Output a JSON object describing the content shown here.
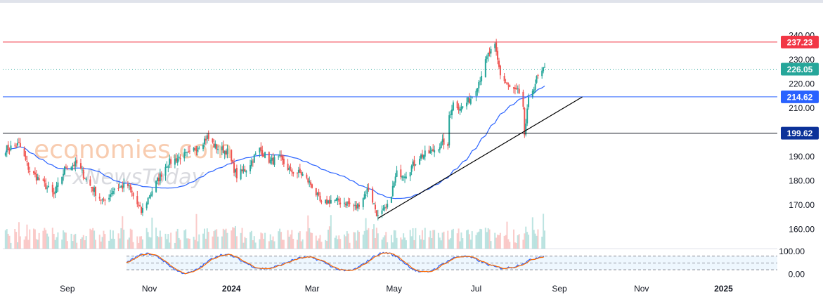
{
  "chart_data": {
    "type": "candlestick",
    "price_axis": {
      "range": [
        152,
        243
      ],
      "ticks": [
        "240.00",
        "230.00",
        "220.00",
        "210.00",
        "190.00",
        "180.00",
        "170.00",
        "160.00"
      ]
    },
    "oscillator_axis": {
      "range": [
        -20,
        110
      ],
      "ticks": [
        "100.00",
        "0.00"
      ],
      "band_upper": 80,
      "band_lower": 20
    },
    "time_axis": {
      "start": "2023-07-15",
      "end": "2025-02-10",
      "labels": [
        {
          "text": "Sep",
          "date": "2023-09-01",
          "bold": false
        },
        {
          "text": "Nov",
          "date": "2023-11-01",
          "bold": false
        },
        {
          "text": "2024",
          "date": "2024-01-01",
          "bold": true
        },
        {
          "text": "Mar",
          "date": "2024-03-01",
          "bold": false
        },
        {
          "text": "May",
          "date": "2024-05-01",
          "bold": false
        },
        {
          "text": "Jul",
          "date": "2024-07-01",
          "bold": false
        },
        {
          "text": "Sep",
          "date": "2024-09-01",
          "bold": false
        },
        {
          "text": "Nov",
          "date": "2024-11-01",
          "bold": false
        },
        {
          "text": "2025",
          "date": "2025-01-01",
          "bold": true
        }
      ]
    },
    "horizontal_levels": [
      {
        "name": "resistance",
        "value": 237.23,
        "label": "237.23",
        "color": "#f23645",
        "style": "solid"
      },
      {
        "name": "last-price",
        "value": 226.05,
        "label": "226.05",
        "color": "#26a69a",
        "style": "dotted"
      },
      {
        "name": "support-1",
        "value": 214.62,
        "label": "214.62",
        "color": "#2962ff",
        "style": "solid"
      },
      {
        "name": "support-2",
        "value": 199.62,
        "label": "199.62",
        "color": "#131722",
        "style": "solid"
      }
    ],
    "trendline": {
      "from": {
        "date": "2024-04-19",
        "price": 164.5
      },
      "to": {
        "date": "2024-09-18",
        "price": 214.6
      },
      "color": "#000000"
    },
    "moving_average_color": "#2962ff",
    "up_color": "#26a69a",
    "down_color": "#ef5350",
    "price_anchors": [
      [
        "2023-07-17",
        193
      ],
      [
        "2023-07-27",
        195
      ],
      [
        "2023-08-04",
        184
      ],
      [
        "2023-08-14",
        179
      ],
      [
        "2023-08-22",
        174
      ],
      [
        "2023-08-31",
        186
      ],
      [
        "2023-09-08",
        187
      ],
      [
        "2023-09-18",
        178
      ],
      [
        "2023-09-28",
        171
      ],
      [
        "2023-10-06",
        177
      ],
      [
        "2023-10-16",
        178
      ],
      [
        "2023-10-26",
        167
      ],
      [
        "2023-11-03",
        176
      ],
      [
        "2023-11-14",
        187
      ],
      [
        "2023-11-24",
        190
      ],
      [
        "2023-12-01",
        191
      ],
      [
        "2023-12-08",
        195
      ],
      [
        "2023-12-14",
        198
      ],
      [
        "2023-12-20",
        194
      ],
      [
        "2023-12-29",
        192
      ],
      [
        "2024-01-05",
        182
      ],
      [
        "2024-01-12",
        185
      ],
      [
        "2024-01-22",
        193
      ],
      [
        "2024-01-30",
        188
      ],
      [
        "2024-02-06",
        189
      ],
      [
        "2024-02-14",
        184
      ],
      [
        "2024-02-22",
        183
      ],
      [
        "2024-03-01",
        178
      ],
      [
        "2024-03-08",
        170
      ],
      [
        "2024-03-15",
        172
      ],
      [
        "2024-03-26",
        171
      ],
      [
        "2024-04-03",
        169
      ],
      [
        "2024-04-12",
        177
      ],
      [
        "2024-04-19",
        165
      ],
      [
        "2024-04-26",
        169
      ],
      [
        "2024-05-03",
        183
      ],
      [
        "2024-05-10",
        183
      ],
      [
        "2024-05-20",
        190
      ],
      [
        "2024-05-29",
        192
      ],
      [
        "2024-06-07",
        196
      ],
      [
        "2024-06-10",
        193
      ],
      [
        "2024-06-11",
        207
      ],
      [
        "2024-06-14",
        212
      ],
      [
        "2024-06-20",
        210
      ],
      [
        "2024-06-27",
        214
      ],
      [
        "2024-07-03",
        221
      ],
      [
        "2024-07-10",
        232
      ],
      [
        "2024-07-15",
        235
      ],
      [
        "2024-07-19",
        224
      ],
      [
        "2024-07-26",
        218
      ],
      [
        "2024-08-01",
        217
      ],
      [
        "2024-08-05",
        209
      ],
      [
        "2024-08-06",
        199
      ],
      [
        "2024-08-09",
        213
      ],
      [
        "2024-08-15",
        222
      ],
      [
        "2024-08-21",
        226
      ]
    ]
  },
  "watermark": {
    "line1": "economies.com",
    "line2": "FxNewsToday"
  }
}
